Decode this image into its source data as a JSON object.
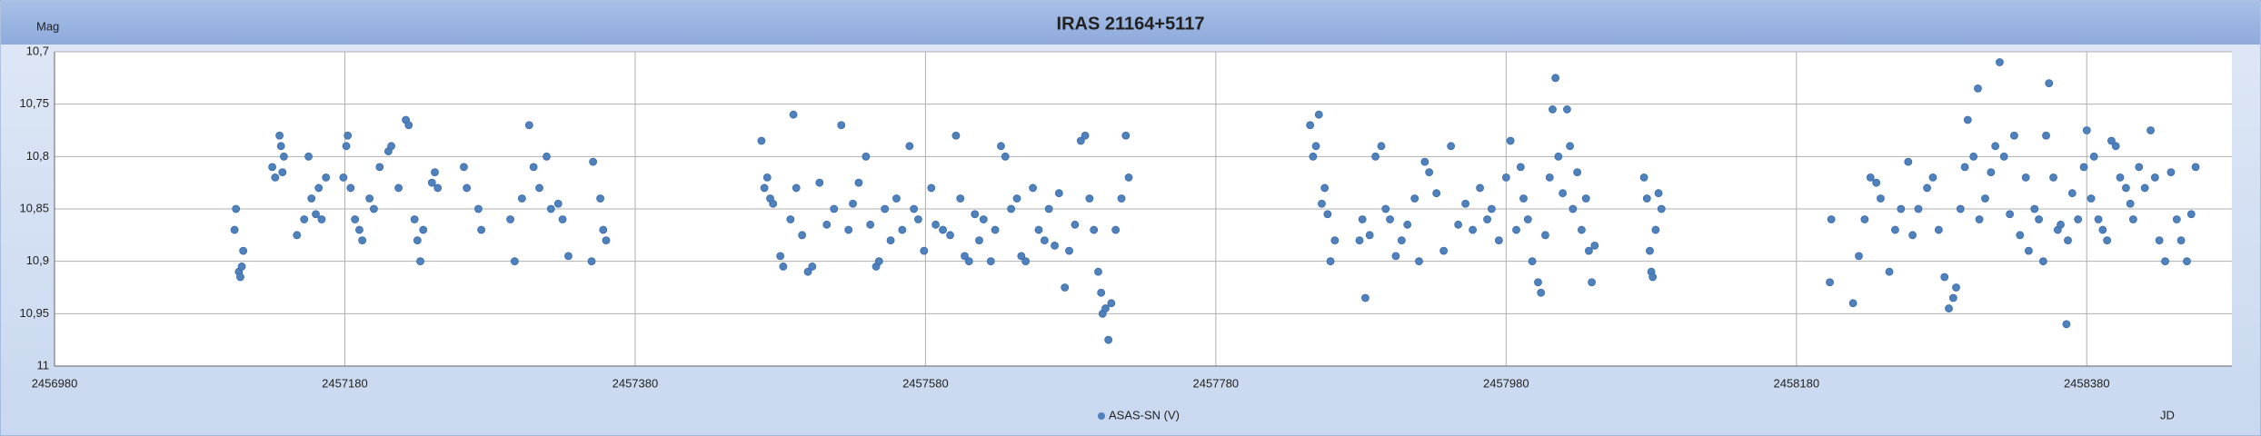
{
  "chart_data": {
    "type": "scatter",
    "title": "IRAS 21164+5117",
    "y_label": "Mag",
    "x_label": "JD",
    "xlim": [
      2456980,
      2458480
    ],
    "xticks": [
      2456980,
      2457180,
      2457380,
      2457580,
      2457780,
      2457980,
      2458180,
      2458380
    ],
    "ylim": [
      10.7,
      11
    ],
    "y_inverted": true,
    "yticks": [
      {
        "value": 10.7,
        "label": "10,7"
      },
      {
        "value": 10.75,
        "label": "10,75"
      },
      {
        "value": 10.8,
        "label": "10,8"
      },
      {
        "value": 10.85,
        "label": "10,85"
      },
      {
        "value": 10.9,
        "label": "10,9"
      },
      {
        "value": 10.95,
        "label": "10,95"
      },
      11
    ],
    "grid": true,
    "legend": "bottom",
    "series": [
      {
        "name": "ASAS-SN (V)",
        "color": "#4f81bd",
        "x": [
          2457104,
          2457105,
          2457107,
          2457108,
          2457110,
          2457109,
          2457130,
          2457132,
          2457135,
          2457136,
          2457137,
          2457138,
          2457147,
          2457152,
          2457155,
          2457157,
          2457160,
          2457162,
          2457164,
          2457167,
          2457179,
          2457181,
          2457182,
          2457184,
          2457187,
          2457190,
          2457192,
          2457197,
          2457200,
          2457204,
          2457210,
          2457212,
          2457217,
          2457222,
          2457224,
          2457228,
          2457230,
          2457232,
          2457234,
          2457240,
          2457242,
          2457244,
          2457262,
          2457264,
          2457272,
          2457274,
          2457294,
          2457297,
          2457302,
          2457307,
          2457310,
          2457314,
          2457319,
          2457322,
          2457327,
          2457330,
          2457334,
          2457350,
          2457351,
          2457356,
          2457358,
          2457360,
          2457467,
          2457469,
          2457471,
          2457473,
          2457475,
          2457480,
          2457482,
          2457487,
          2457489,
          2457491,
          2457495,
          2457499,
          2457502,
          2457507,
          2457512,
          2457517,
          2457522,
          2457527,
          2457530,
          2457534,
          2457539,
          2457542,
          2457546,
          2457548,
          2457552,
          2457556,
          2457560,
          2457564,
          2457569,
          2457572,
          2457575,
          2457579,
          2457584,
          2457587,
          2457592,
          2457597,
          2457601,
          2457604,
          2457607,
          2457610,
          2457614,
          2457617,
          2457620,
          2457625,
          2457628,
          2457632,
          2457635,
          2457639,
          2457643,
          2457646,
          2457649,
          2457654,
          2457658,
          2457662,
          2457665,
          2457669,
          2457672,
          2457676,
          2457679,
          2457683,
          2457687,
          2457690,
          2457693,
          2457696,
          2457699,
          2457701,
          2457702,
          2457704,
          2457706,
          2457708,
          2457711,
          2457715,
          2457718,
          2457720,
          2457845,
          2457847,
          2457849,
          2457851,
          2457853,
          2457855,
          2457857,
          2457859,
          2457862,
          2457879,
          2457881,
          2457883,
          2457886,
          2457890,
          2457894,
          2457897,
          2457900,
          2457904,
          2457908,
          2457912,
          2457917,
          2457920,
          2457924,
          2457927,
          2457932,
          2457937,
          2457942,
          2457947,
          2457952,
          2457957,
          2457962,
          2457967,
          2457970,
          2457975,
          2457980,
          2457983,
          2457987,
          2457990,
          2457992,
          2457995,
          2457998,
          2458002,
          2458004,
          2458007,
          2458010,
          2458012,
          2458014,
          2458016,
          2458019,
          2458022,
          2458024,
          2458026,
          2458029,
          2458032,
          2458035,
          2458037,
          2458039,
          2458041,
          2458075,
          2458077,
          2458079,
          2458080,
          2458081,
          2458083,
          2458085,
          2458087,
          2458203,
          2458204,
          2458219,
          2458223,
          2458227,
          2458231,
          2458235,
          2458238,
          2458244,
          2458248,
          2458252,
          2458257,
          2458260,
          2458264,
          2458270,
          2458274,
          2458278,
          2458282,
          2458285,
          2458288,
          2458290,
          2458293,
          2458296,
          2458298,
          2458302,
          2458305,
          2458306,
          2458310,
          2458314,
          2458317,
          2458320,
          2458323,
          2458327,
          2458330,
          2458334,
          2458338,
          2458340,
          2458344,
          2458347,
          2458350,
          2458352,
          2458354,
          2458357,
          2458360,
          2458362,
          2458366,
          2458367,
          2458370,
          2458374,
          2458378,
          2458380,
          2458383,
          2458385,
          2458388,
          2458391,
          2458394,
          2458397,
          2458400,
          2458403,
          2458407,
          2458410,
          2458412,
          2458416,
          2458420,
          2458424,
          2458427,
          2458430,
          2458434,
          2458438,
          2458442,
          2458445,
          2458449,
          2458452,
          2458455
        ],
        "values": [
          10.87,
          10.85,
          10.91,
          10.915,
          10.89,
          10.905,
          10.81,
          10.82,
          10.78,
          10.79,
          10.815,
          10.8,
          10.875,
          10.86,
          10.8,
          10.84,
          10.855,
          10.83,
          10.86,
          10.82,
          10.82,
          10.79,
          10.78,
          10.83,
          10.86,
          10.87,
          10.88,
          10.84,
          10.85,
          10.81,
          10.795,
          10.79,
          10.83,
          10.765,
          10.77,
          10.86,
          10.88,
          10.9,
          10.87,
          10.825,
          10.815,
          10.83,
          10.81,
          10.83,
          10.85,
          10.87,
          10.86,
          10.9,
          10.84,
          10.77,
          10.81,
          10.83,
          10.8,
          10.85,
          10.845,
          10.86,
          10.895,
          10.9,
          10.805,
          10.84,
          10.87,
          10.88,
          10.785,
          10.83,
          10.82,
          10.84,
          10.845,
          10.895,
          10.905,
          10.86,
          10.76,
          10.83,
          10.875,
          10.91,
          10.905,
          10.825,
          10.865,
          10.85,
          10.77,
          10.87,
          10.845,
          10.825,
          10.8,
          10.865,
          10.905,
          10.9,
          10.85,
          10.88,
          10.84,
          10.87,
          10.79,
          10.85,
          10.86,
          10.89,
          10.83,
          10.865,
          10.87,
          10.875,
          10.78,
          10.84,
          10.895,
          10.9,
          10.855,
          10.88,
          10.86,
          10.9,
          10.87,
          10.79,
          10.8,
          10.85,
          10.84,
          10.895,
          10.9,
          10.83,
          10.87,
          10.88,
          10.85,
          10.885,
          10.835,
          10.925,
          10.89,
          10.865,
          10.785,
          10.78,
          10.84,
          10.87,
          10.91,
          10.93,
          10.95,
          10.945,
          10.975,
          10.94,
          10.87,
          10.84,
          10.78,
          10.82,
          10.77,
          10.8,
          10.79,
          10.76,
          10.845,
          10.83,
          10.855,
          10.9,
          10.88,
          10.88,
          10.86,
          10.935,
          10.875,
          10.8,
          10.79,
          10.85,
          10.86,
          10.895,
          10.88,
          10.865,
          10.84,
          10.9,
          10.805,
          10.815,
          10.835,
          10.89,
          10.79,
          10.865,
          10.845,
          10.87,
          10.83,
          10.86,
          10.85,
          10.88,
          10.82,
          10.785,
          10.87,
          10.81,
          10.84,
          10.86,
          10.9,
          10.92,
          10.93,
          10.875,
          10.82,
          10.755,
          10.725,
          10.8,
          10.835,
          10.755,
          10.79,
          10.85,
          10.815,
          10.87,
          10.84,
          10.89,
          10.92,
          10.885,
          10.82,
          10.84,
          10.89,
          10.91,
          10.915,
          10.87,
          10.835,
          10.85,
          10.92,
          10.86,
          10.94,
          10.895,
          10.86,
          10.82,
          10.825,
          10.84,
          10.91,
          10.87,
          10.85,
          10.805,
          10.875,
          10.85,
          10.83,
          10.82,
          10.87,
          10.915,
          10.945,
          10.935,
          10.925,
          10.85,
          10.81,
          10.765,
          10.8,
          10.735,
          10.86,
          10.84,
          10.815,
          10.79,
          10.71,
          10.8,
          10.855,
          10.78,
          10.875,
          10.82,
          10.89,
          10.85,
          10.86,
          10.9,
          10.78,
          10.73,
          10.82,
          10.87,
          10.865,
          10.96,
          10.88,
          10.835,
          10.86,
          10.81,
          10.775,
          10.84,
          10.8,
          10.86,
          10.87,
          10.88,
          10.785,
          10.79,
          10.82,
          10.83,
          10.845,
          10.86,
          10.81,
          10.83,
          10.775,
          10.82,
          10.88,
          10.9,
          10.815,
          10.86,
          10.88,
          10.9,
          10.855,
          10.81
        ]
      }
    ]
  }
}
